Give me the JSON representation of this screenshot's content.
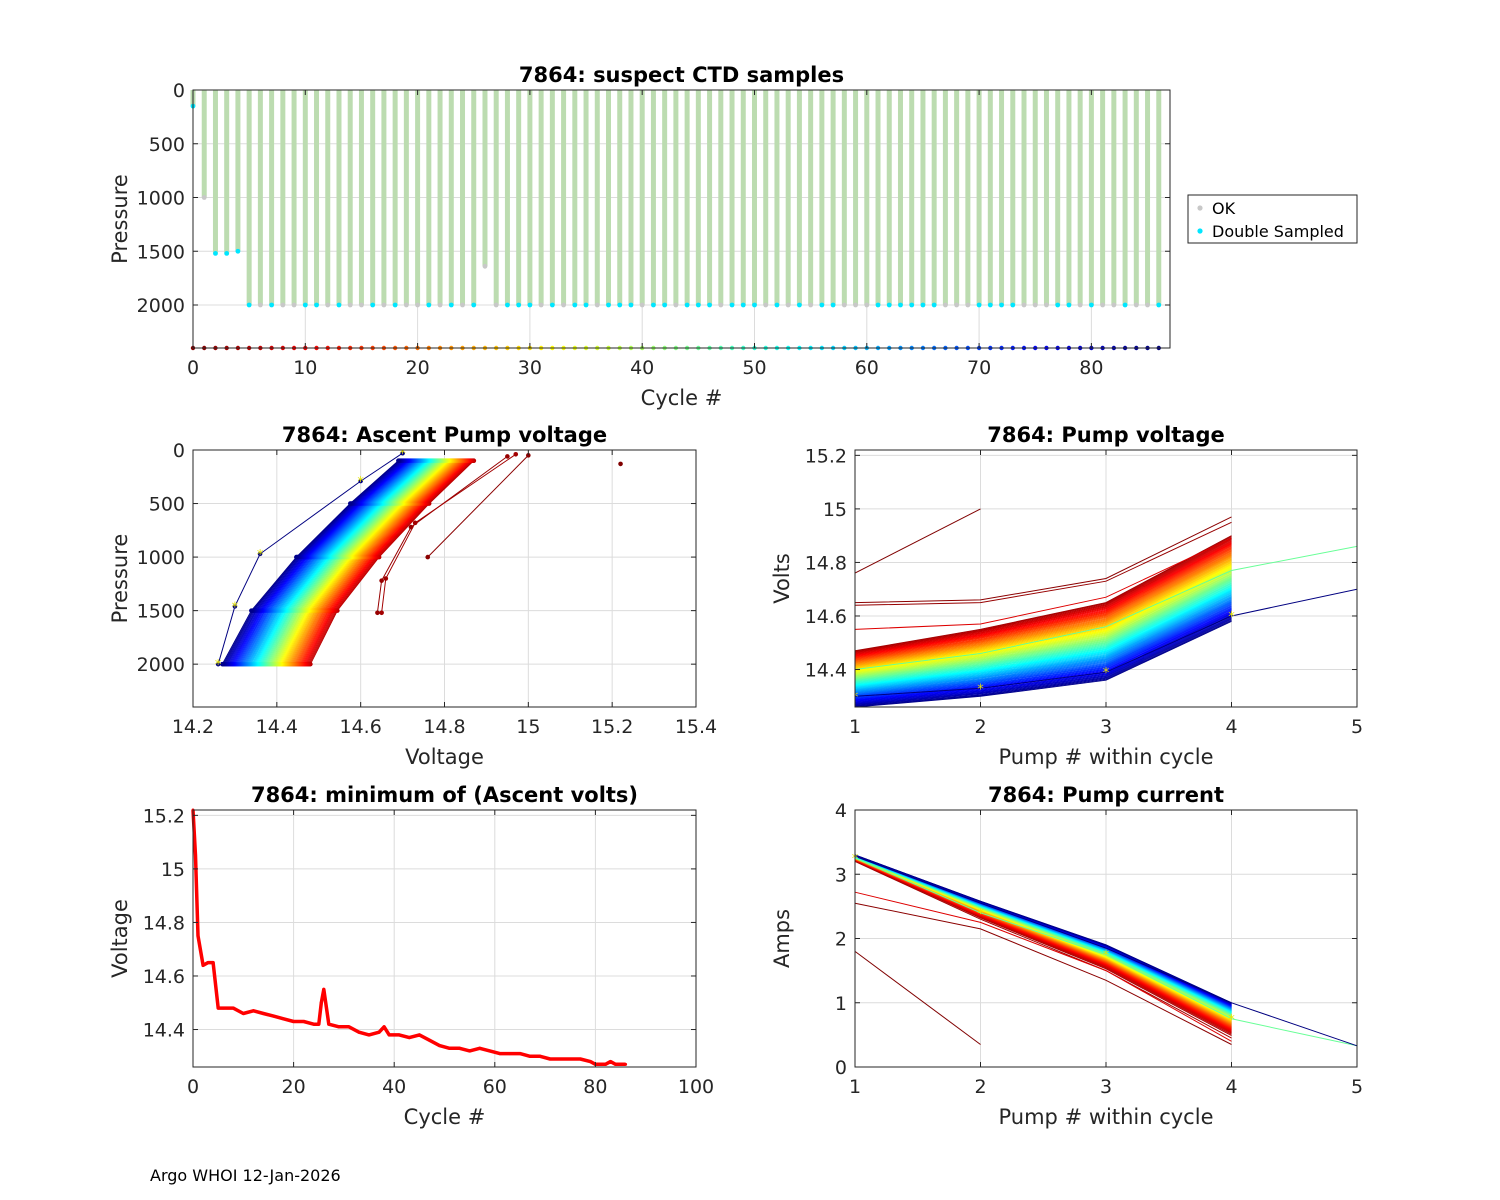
{
  "footer": "Argo WHOI 12-Jan-2026",
  "chart_data": [
    {
      "id": "ctd",
      "type": "scatter",
      "title": "7864: suspect CTD samples",
      "xlabel": "Cycle #",
      "ylabel": "Pressure",
      "xlim": [
        0,
        87
      ],
      "ylim": [
        0,
        2400
      ],
      "y_reversed": true,
      "xticks": [
        0,
        10,
        20,
        30,
        40,
        50,
        60,
        70,
        80
      ],
      "yticks": [
        0,
        500,
        1000,
        1500,
        2000
      ],
      "legend": [
        {
          "label": "OK",
          "color": "#c8c8c8"
        },
        {
          "label": "Double Sampled",
          "color": "#00e6ff"
        }
      ],
      "legend_position": "outside-right",
      "profile_color": "#bcdcb0",
      "cycles": 87,
      "profile_depth_default": 2000,
      "profile_depth_overrides": {
        "0": 150,
        "1": 1000,
        "2": 1520,
        "3": 1520,
        "4": 1500,
        "26": 1640
      },
      "double_sampled_cycles": [
        0,
        2,
        3,
        4,
        5,
        7,
        10,
        11,
        13,
        16,
        18,
        21,
        23,
        25,
        28,
        29,
        30,
        32,
        34,
        35,
        37,
        38,
        39,
        41,
        42,
        44,
        45,
        46,
        48,
        49,
        50,
        52,
        54,
        56,
        57,
        61,
        62,
        63,
        64,
        65,
        66,
        70,
        71,
        72,
        73,
        77,
        78,
        80,
        83,
        86
      ],
      "cycle_marker_pressure": 2400
    },
    {
      "id": "ascent",
      "type": "line",
      "title": "7864: Ascent Pump voltage",
      "xlabel": "Voltage",
      "ylabel": "Pressure",
      "xlim": [
        14.2,
        15.4
      ],
      "ylim": [
        0,
        2400
      ],
      "y_reversed": true,
      "xticks": [
        14.2,
        14.4,
        14.6,
        14.8,
        15,
        15.2,
        15.4
      ],
      "yticks": [
        0,
        500,
        1000,
        1500,
        2000
      ],
      "series_profiles": [
        {
          "cycle": 0,
          "points": [
            [
              15.22,
              130
            ]
          ]
        },
        {
          "cycle": 1,
          "points": [
            [
              14.76,
              1000
            ],
            [
              15.0,
              50
            ]
          ]
        },
        {
          "cycle": 2,
          "points": [
            [
              14.64,
              1520
            ],
            [
              14.65,
              1220
            ],
            [
              14.72,
              720
            ],
            [
              14.95,
              60
            ]
          ]
        },
        {
          "cycle": 3,
          "points": [
            [
              14.65,
              1520
            ],
            [
              14.66,
              1200
            ],
            [
              14.73,
              680
            ],
            [
              14.97,
              40
            ]
          ]
        },
        {
          "cycle": 86,
          "points": [
            [
              14.26,
              2000
            ],
            [
              14.3,
              1460
            ],
            [
              14.36,
              970
            ],
            [
              14.6,
              290
            ],
            [
              14.7,
              30
            ]
          ]
        }
      ],
      "gradient_profiles": {
        "cycle_from": 5,
        "cycle_to": 85,
        "pressures": [
          2000,
          1500,
          1000,
          500,
          100
        ],
        "v2000_start": 14.48,
        "v2000_end": 14.27,
        "v100_start": 14.87,
        "v100_end": 14.69
      }
    },
    {
      "id": "pumpv",
      "type": "line",
      "title": "7864: Pump voltage",
      "xlabel": "Pump # within cycle",
      "ylabel": "Volts",
      "xlim": [
        1,
        5
      ],
      "ylim": [
        14.26,
        15.22
      ],
      "xticks": [
        1,
        2,
        3,
        4,
        5
      ],
      "yticks": [
        14.4,
        14.6,
        14.8,
        15,
        15.2
      ],
      "ytick_labels": [
        "14.4",
        "14.6",
        "14.8",
        "15",
        "15.2"
      ],
      "special_series": [
        {
          "cycle": 0,
          "values": [
            14.76,
            15.0
          ]
        },
        {
          "cycle": 1,
          "values": [
            14.65,
            14.66,
            14.74,
            14.97
          ]
        },
        {
          "cycle": 2,
          "values": [
            14.64,
            14.65,
            14.73,
            14.95
          ]
        },
        {
          "cycle": 8,
          "values": [
            14.55,
            14.57,
            14.67,
            14.89
          ]
        },
        {
          "cycle": 45,
          "values": [
            14.4,
            14.46,
            14.56,
            14.77,
            14.86
          ]
        },
        {
          "cycle": 86,
          "values": [
            14.3,
            14.33,
            14.39,
            14.6,
            14.7
          ]
        }
      ],
      "gradient_range": {
        "cycle_from": 3,
        "cycle_to": 85,
        "p1": [
          14.47,
          14.26
        ],
        "p2": [
          14.55,
          14.3
        ],
        "p3": [
          14.65,
          14.36
        ],
        "p4": [
          14.9,
          14.58
        ]
      }
    },
    {
      "id": "minv",
      "type": "line",
      "title": "7864: minimum of (Ascent volts)",
      "xlabel": "Cycle #",
      "ylabel": "Voltage",
      "xlim": [
        0,
        100
      ],
      "ylim": [
        14.26,
        15.22
      ],
      "xticks": [
        0,
        20,
        40,
        60,
        80,
        100
      ],
      "yticks": [
        14.4,
        14.6,
        14.8,
        15,
        15.2
      ],
      "ytick_labels": [
        "14.4",
        "14.6",
        "14.8",
        "15",
        "15.2"
      ],
      "series": [
        {
          "name": "min ascent volts",
          "color": "#ff0000",
          "x": [
            0,
            0.5,
            1,
            2,
            3,
            4,
            5,
            6,
            8,
            10,
            12,
            14,
            16,
            18,
            20,
            22,
            24,
            25,
            25.5,
            26,
            27,
            29,
            31,
            33,
            35,
            37,
            38,
            39,
            41,
            43,
            45,
            47,
            49,
            51,
            53,
            55,
            57,
            59,
            61,
            63,
            65,
            67,
            69,
            71,
            73,
            75,
            77,
            79,
            80,
            81,
            82,
            83,
            84,
            85,
            86
          ],
          "values": [
            15.22,
            15.05,
            14.75,
            14.64,
            14.65,
            14.65,
            14.48,
            14.48,
            14.48,
            14.46,
            14.47,
            14.46,
            14.45,
            14.44,
            14.43,
            14.43,
            14.42,
            14.42,
            14.5,
            14.55,
            14.42,
            14.41,
            14.41,
            14.39,
            14.38,
            14.39,
            14.41,
            14.38,
            14.38,
            14.37,
            14.38,
            14.36,
            14.34,
            14.33,
            14.33,
            14.32,
            14.33,
            14.32,
            14.31,
            14.31,
            14.31,
            14.3,
            14.3,
            14.29,
            14.29,
            14.29,
            14.29,
            14.28,
            14.27,
            14.27,
            14.27,
            14.28,
            14.27,
            14.27,
            14.27
          ]
        }
      ]
    },
    {
      "id": "pumpc",
      "type": "line",
      "title": "7864: Pump current",
      "xlabel": "Pump # within cycle",
      "ylabel": "Amps",
      "xlim": [
        1,
        5
      ],
      "ylim": [
        0,
        4
      ],
      "xticks": [
        1,
        2,
        3,
        4,
        5
      ],
      "yticks": [
        0,
        1,
        2,
        3,
        4
      ],
      "special_series": [
        {
          "cycle": 0,
          "values": [
            1.8,
            0.35
          ]
        },
        {
          "cycle": 1,
          "values": [
            2.55,
            2.15,
            1.35,
            0.35
          ]
        },
        {
          "cycle": 8,
          "values": [
            2.72,
            2.25,
            1.5,
            0.4
          ]
        },
        {
          "cycle": 45,
          "values": [
            3.25,
            2.4,
            1.75,
            0.75,
            0.33
          ]
        },
        {
          "cycle": 86,
          "values": [
            3.28,
            2.55,
            1.85,
            1.0,
            0.33
          ]
        }
      ],
      "gradient_range": {
        "cycle_from": 3,
        "cycle_to": 85,
        "p1": [
          3.2,
          3.3
        ],
        "p2": [
          2.3,
          2.58
        ],
        "p3": [
          1.5,
          1.9
        ],
        "p4": [
          0.45,
          1.0
        ]
      }
    }
  ]
}
